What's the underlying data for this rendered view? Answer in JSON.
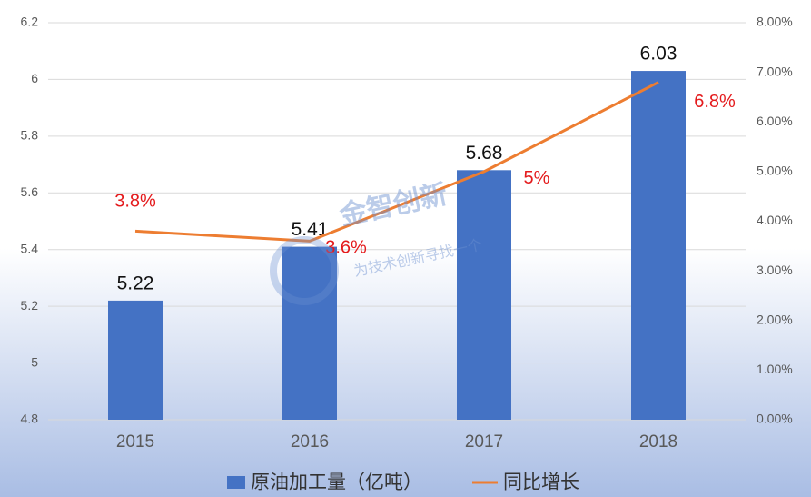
{
  "chart_data": {
    "type": "bar_line",
    "categories": [
      "2015",
      "2016",
      "2017",
      "2018"
    ],
    "series": [
      {
        "name": "原油加工量（亿吨）",
        "type": "bar",
        "color": "#4472c4",
        "values": [
          5.22,
          5.41,
          5.68,
          6.03
        ]
      },
      {
        "name": "同比增长",
        "type": "line",
        "axis": "y2",
        "color": "#ed7d31",
        "values": [
          3.8,
          3.6,
          5,
          6.8
        ],
        "value_labels": [
          "3.8%",
          "3.6%",
          "5%",
          "6.8%"
        ]
      }
    ],
    "ylim": [
      4.8,
      6.2
    ],
    "yticks": [
      4.8,
      5,
      5.2,
      5.4,
      5.6,
      5.8,
      6,
      6.2
    ],
    "y2lim": [
      0,
      8
    ],
    "y2ticks": [
      {
        "value": 0,
        "label": "0.00%"
      },
      {
        "value": 1,
        "label": "1.00%"
      },
      {
        "value": 2,
        "label": "2.00%"
      },
      {
        "value": 3,
        "label": "3.00%"
      },
      {
        "value": 4,
        "label": "4.00%"
      },
      {
        "value": 5,
        "label": "5.00%"
      },
      {
        "value": 6,
        "label": "6.00%"
      },
      {
        "value": 7,
        "label": "7.00%"
      },
      {
        "value": 8,
        "label": "8.00%"
      }
    ],
    "grid": true,
    "legend": "bottom",
    "watermark": {
      "title": "金智创新",
      "subtitle": "为技术创新寻找一个"
    }
  }
}
